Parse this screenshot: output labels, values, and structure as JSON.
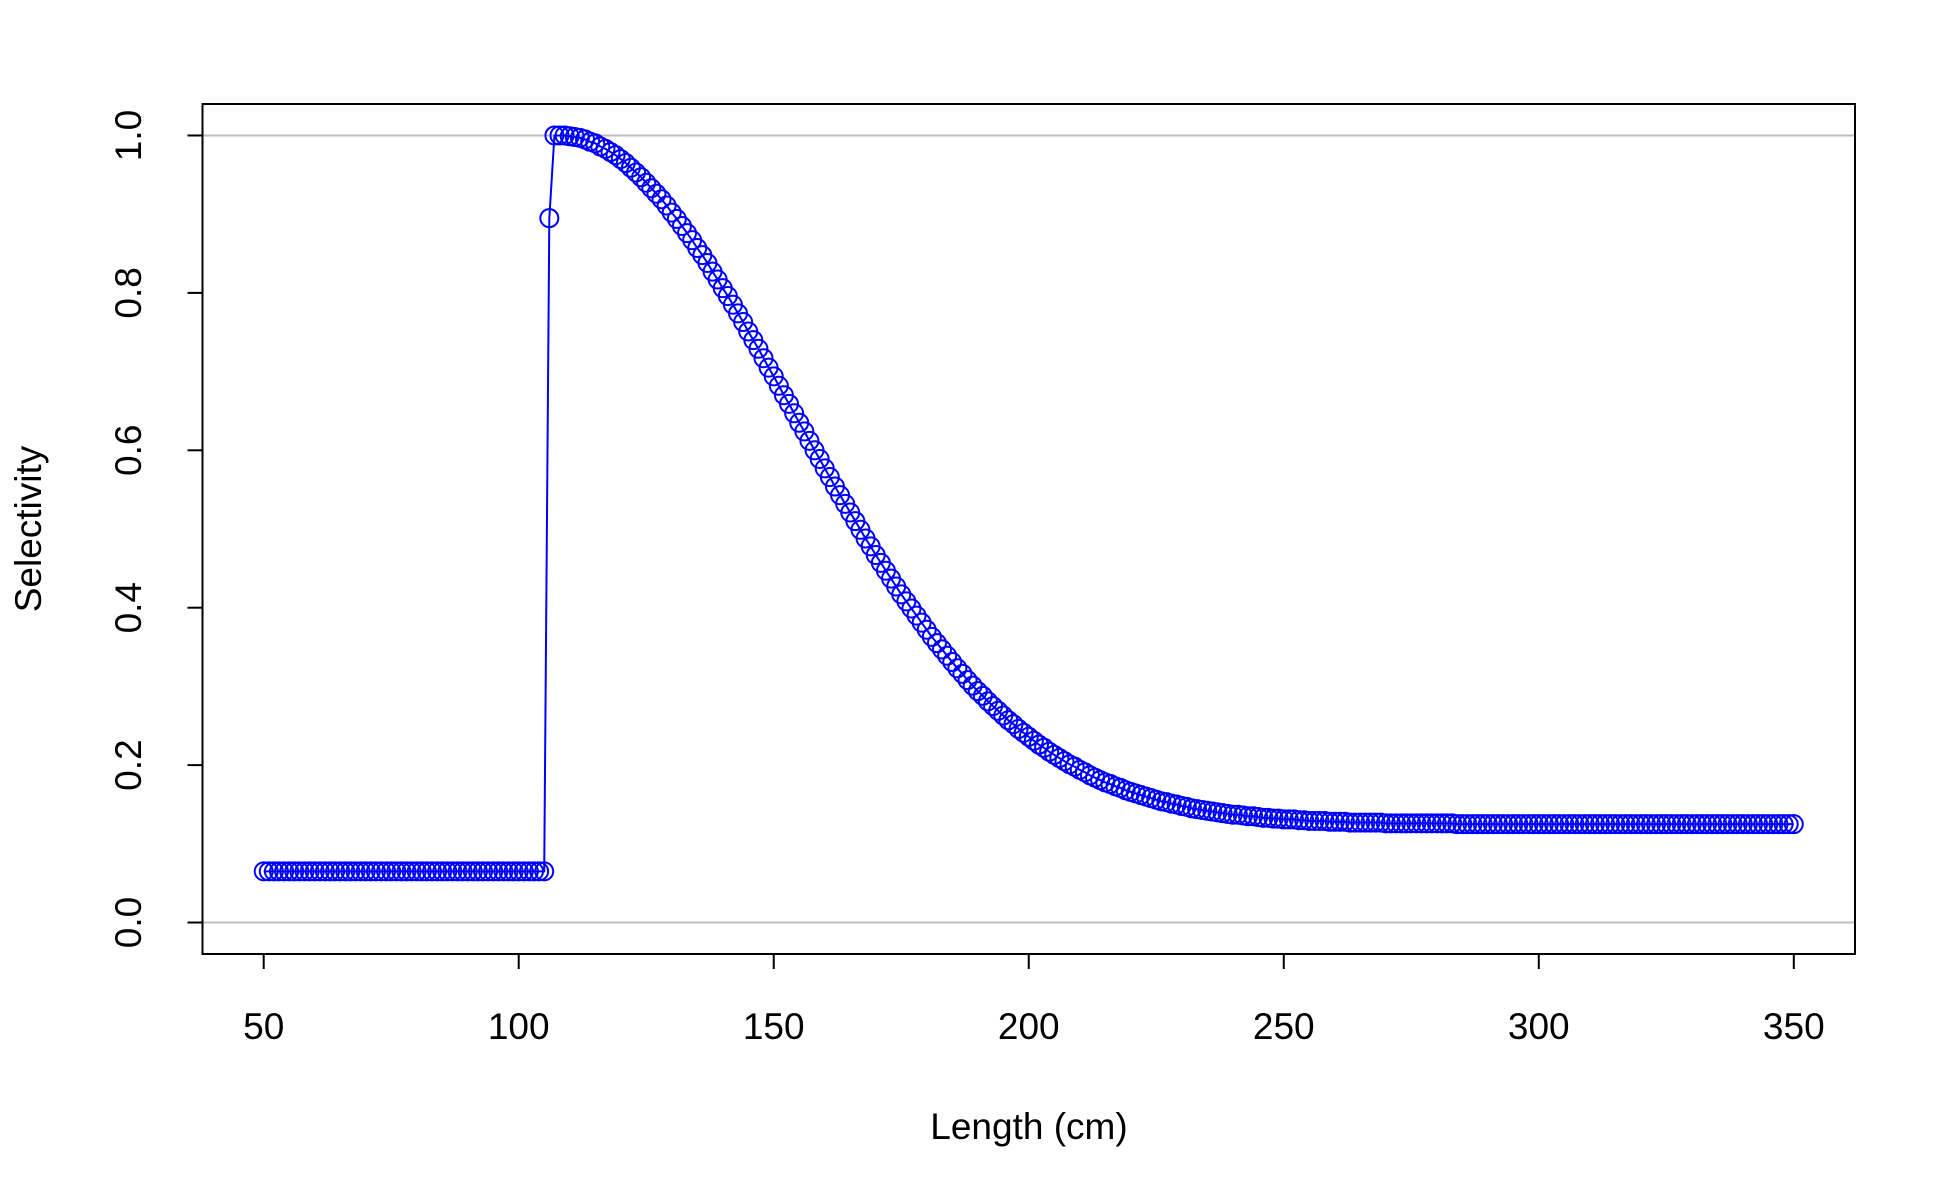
{
  "chart_data": {
    "type": "line",
    "x_label": "Length (cm)",
    "y_label": "Selectivity",
    "color": "#0000ff",
    "markers": true,
    "reference_lines": [
      0,
      1
    ],
    "reference_color": "#bebebe",
    "xlim": [
      38,
      362
    ],
    "ylim": [
      -0.04,
      1.04
    ],
    "xticks": [
      50,
      100,
      150,
      200,
      250,
      300,
      350
    ],
    "yticks": [
      {
        "value": 0,
        "label": "0.0"
      },
      0.2,
      0.4,
      0.6,
      0.8,
      {
        "value": 1,
        "label": "1.0"
      }
    ],
    "x": [
      50,
      51,
      52,
      53,
      54,
      55,
      56,
      57,
      58,
      59,
      60,
      61,
      62,
      63,
      64,
      65,
      66,
      67,
      68,
      69,
      70,
      71,
      72,
      73,
      74,
      75,
      76,
      77,
      78,
      79,
      80,
      81,
      82,
      83,
      84,
      85,
      86,
      87,
      88,
      89,
      90,
      91,
      92,
      93,
      94,
      95,
      96,
      97,
      98,
      99,
      100,
      101,
      102,
      103,
      104,
      105,
      106,
      107,
      108,
      109,
      110,
      111,
      112,
      113,
      114,
      115,
      116,
      117,
      118,
      119,
      120,
      121,
      122,
      123,
      124,
      125,
      126,
      127,
      128,
      129,
      130,
      131,
      132,
      133,
      134,
      135,
      136,
      137,
      138,
      139,
      140,
      141,
      142,
      143,
      144,
      145,
      146,
      147,
      148,
      149,
      150,
      151,
      152,
      153,
      154,
      155,
      156,
      157,
      158,
      159,
      160,
      161,
      162,
      163,
      164,
      165,
      166,
      167,
      168,
      169,
      170,
      171,
      172,
      173,
      174,
      175,
      176,
      177,
      178,
      179,
      180,
      181,
      182,
      183,
      184,
      185,
      186,
      187,
      188,
      189,
      190,
      191,
      192,
      193,
      194,
      195,
      196,
      197,
      198,
      199,
      200,
      201,
      202,
      203,
      204,
      205,
      206,
      207,
      208,
      209,
      210,
      211,
      212,
      213,
      214,
      215,
      216,
      217,
      218,
      219,
      220,
      221,
      222,
      223,
      224,
      225,
      226,
      227,
      228,
      229,
      230,
      231,
      232,
      233,
      234,
      235,
      236,
      237,
      238,
      239,
      240,
      241,
      242,
      243,
      244,
      245,
      246,
      247,
      248,
      249,
      250,
      251,
      252,
      253,
      254,
      255,
      256,
      257,
      258,
      259,
      260,
      261,
      262,
      263,
      264,
      265,
      266,
      267,
      268,
      269,
      270,
      271,
      272,
      273,
      274,
      275,
      276,
      277,
      278,
      279,
      280,
      281,
      282,
      283,
      284,
      285,
      286,
      287,
      288,
      289,
      290,
      291,
      292,
      293,
      294,
      295,
      296,
      297,
      298,
      299,
      300,
      301,
      302,
      303,
      304,
      305,
      306,
      307,
      308,
      309,
      310,
      311,
      312,
      313,
      314,
      315,
      316,
      317,
      318,
      319,
      320,
      321,
      322,
      323,
      324,
      325,
      326,
      327,
      328,
      329,
      330,
      331,
      332,
      333,
      334,
      335,
      336,
      337,
      338,
      339,
      340,
      341,
      342,
      343,
      344,
      345,
      346,
      347,
      348,
      349,
      350
    ],
    "values": [
      0.065,
      0.065,
      0.065,
      0.065,
      0.065,
      0.065,
      0.065,
      0.065,
      0.065,
      0.065,
      0.065,
      0.065,
      0.065,
      0.065,
      0.065,
      0.065,
      0.065,
      0.065,
      0.065,
      0.065,
      0.065,
      0.065,
      0.065,
      0.065,
      0.065,
      0.065,
      0.065,
      0.065,
      0.065,
      0.065,
      0.065,
      0.065,
      0.065,
      0.065,
      0.065,
      0.065,
      0.065,
      0.065,
      0.065,
      0.065,
      0.065,
      0.065,
      0.065,
      0.065,
      0.065,
      0.065,
      0.065,
      0.065,
      0.065,
      0.065,
      0.065,
      0.065,
      0.065,
      0.065,
      0.065,
      0.065,
      0.895,
      1.0,
      1.0,
      1.0,
      0.999,
      0.998,
      0.997,
      0.995,
      0.992,
      0.99,
      0.986,
      0.983,
      0.979,
      0.975,
      0.97,
      0.965,
      0.959,
      0.953,
      0.947,
      0.94,
      0.933,
      0.926,
      0.919,
      0.911,
      0.902,
      0.894,
      0.885,
      0.876,
      0.867,
      0.857,
      0.848,
      0.838,
      0.827,
      0.817,
      0.806,
      0.796,
      0.785,
      0.774,
      0.763,
      0.751,
      0.74,
      0.729,
      0.717,
      0.705,
      0.694,
      0.682,
      0.67,
      0.659,
      0.647,
      0.635,
      0.624,
      0.612,
      0.6,
      0.589,
      0.577,
      0.566,
      0.554,
      0.543,
      0.532,
      0.521,
      0.51,
      0.499,
      0.488,
      0.478,
      0.467,
      0.457,
      0.447,
      0.437,
      0.427,
      0.417,
      0.408,
      0.399,
      0.39,
      0.381,
      0.372,
      0.363,
      0.355,
      0.347,
      0.339,
      0.331,
      0.323,
      0.316,
      0.308,
      0.301,
      0.294,
      0.288,
      0.281,
      0.275,
      0.269,
      0.263,
      0.257,
      0.252,
      0.246,
      0.241,
      0.236,
      0.231,
      0.226,
      0.222,
      0.217,
      0.213,
      0.209,
      0.205,
      0.201,
      0.198,
      0.194,
      0.191,
      0.187,
      0.184,
      0.181,
      0.178,
      0.176,
      0.173,
      0.171,
      0.168,
      0.166,
      0.164,
      0.162,
      0.16,
      0.158,
      0.156,
      0.154,
      0.153,
      0.151,
      0.15,
      0.148,
      0.147,
      0.145,
      0.144,
      0.143,
      0.142,
      0.141,
      0.14,
      0.139,
      0.138,
      0.137,
      0.137,
      0.136,
      0.135,
      0.135,
      0.134,
      0.133,
      0.133,
      0.132,
      0.132,
      0.131,
      0.131,
      0.131,
      0.13,
      0.13,
      0.129,
      0.129,
      0.129,
      0.129,
      0.128,
      0.128,
      0.128,
      0.128,
      0.127,
      0.127,
      0.127,
      0.127,
      0.127,
      0.127,
      0.127,
      0.126,
      0.126,
      0.126,
      0.126,
      0.126,
      0.126,
      0.126,
      0.126,
      0.126,
      0.126,
      0.126,
      0.126,
      0.126,
      0.126,
      0.125,
      0.125,
      0.125,
      0.125,
      0.125,
      0.125,
      0.125,
      0.125,
      0.125,
      0.125,
      0.125,
      0.125,
      0.125,
      0.125,
      0.125,
      0.125,
      0.125,
      0.125,
      0.125,
      0.125,
      0.125,
      0.125,
      0.125,
      0.125,
      0.125,
      0.125,
      0.125,
      0.125,
      0.125,
      0.125,
      0.125,
      0.125,
      0.125,
      0.125,
      0.125,
      0.125,
      0.125,
      0.125,
      0.125,
      0.125,
      0.125,
      0.125,
      0.125,
      0.125,
      0.125,
      0.125,
      0.125,
      0.125,
      0.125,
      0.125,
      0.125,
      0.125,
      0.125,
      0.125,
      0.125,
      0.125,
      0.125,
      0.125,
      0.125,
      0.125,
      0.125,
      0.125,
      0.125,
      0.125,
      0.125,
      0.125,
      0.125
    ]
  }
}
